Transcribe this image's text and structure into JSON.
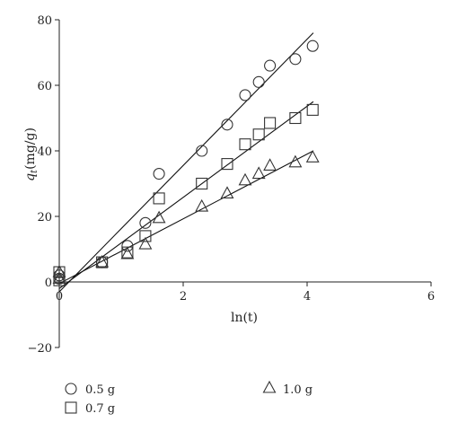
{
  "chart_data": {
    "type": "scatter",
    "xlabel": "ln(t)",
    "ylabel": "(mg/g)",
    "ylabel_symbol": "q",
    "ylabel_subscript": "t",
    "xlim": [
      0,
      6
    ],
    "ylim": [
      -20,
      80
    ],
    "x_ticks": [
      0,
      2,
      4,
      6
    ],
    "y_ticks": [
      -20,
      0,
      20,
      40,
      60,
      80
    ],
    "grid": false,
    "legend_position": "bottom",
    "series": [
      {
        "name": "0.5 g",
        "marker": "circle",
        "x": [
          0,
          0,
          0.69,
          1.1,
          1.39,
          1.61,
          2.3,
          2.71,
          3.0,
          3.22,
          3.4,
          3.81,
          4.09
        ],
        "y": [
          1,
          2,
          6,
          11,
          18,
          33,
          40,
          48,
          57,
          61,
          66,
          68,
          72
        ],
        "fit": {
          "x": [
            0,
            4.1
          ],
          "y": [
            -3,
            76
          ]
        }
      },
      {
        "name": "0.7 g",
        "marker": "square",
        "x": [
          0,
          0,
          0.69,
          1.1,
          1.39,
          1.61,
          2.3,
          2.71,
          3.0,
          3.22,
          3.4,
          3.81,
          4.09
        ],
        "y": [
          0.5,
          3,
          6,
          9,
          14,
          25.5,
          30,
          36,
          42,
          45,
          48.5,
          50,
          52.5
        ],
        "fit": {
          "x": [
            0,
            4.1
          ],
          "y": [
            -2,
            55
          ]
        }
      },
      {
        "name": "1.0 g",
        "marker": "triangle",
        "x": [
          0,
          0,
          0.69,
          1.1,
          1.39,
          1.61,
          2.3,
          2.71,
          3.0,
          3.22,
          3.4,
          3.81,
          4.09
        ],
        "y": [
          1,
          3,
          6,
          8.5,
          11.5,
          19.5,
          23,
          27,
          31,
          33,
          35.5,
          36.5,
          38
        ],
        "fit": {
          "x": [
            0,
            4.1
          ],
          "y": [
            -0.5,
            40
          ]
        }
      }
    ]
  }
}
